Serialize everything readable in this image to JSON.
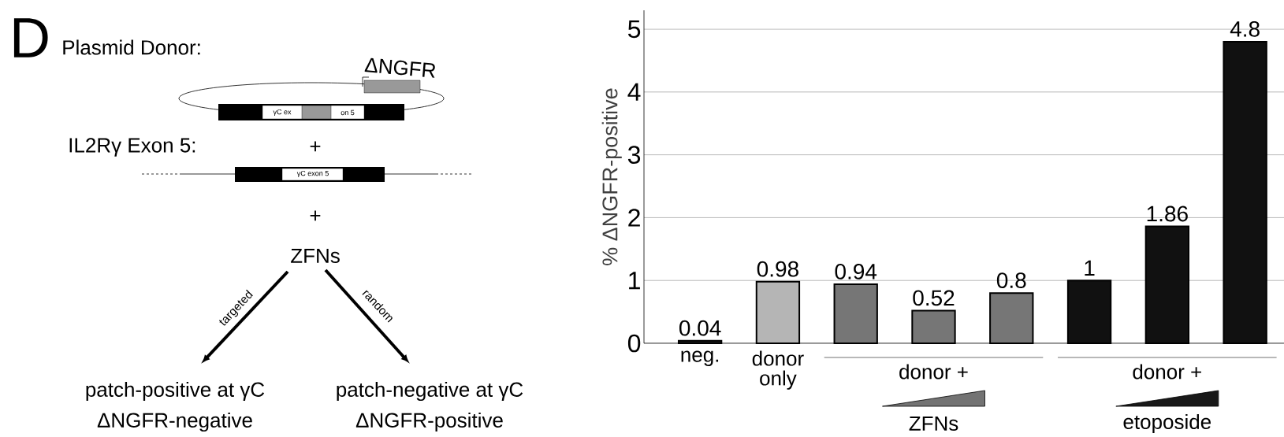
{
  "chart_data": {
    "type": "bar",
    "ylabel": "% ΔNGFR-positive",
    "categories": [
      "neg.",
      "donor only",
      null,
      null,
      null,
      null,
      null,
      null
    ],
    "values": [
      0.04,
      0.98,
      0.94,
      0.52,
      0.8,
      1,
      1.86,
      4.8
    ],
    "colors": [
      "#1a1a1a",
      "#b5b5b5",
      "#767676",
      "#767676",
      "#767676",
      "#111111",
      "#111111",
      "#111111"
    ],
    "ylim": [
      0,
      5.3
    ],
    "yticks": [
      0,
      1,
      2,
      3,
      4,
      5
    ],
    "grid": "y",
    "data_labels": true,
    "annotations": [
      "donor +",
      "ZFNs",
      "donor +",
      "etoposide",
      "D",
      "Plasmid Donor:",
      "ΔNGFR",
      "γC ex",
      "on 5",
      "IL2Rγ Exon 5:",
      "+",
      "γC exon 5",
      "+",
      "ZFNs",
      "targeted",
      "random",
      "patch-positive at γC",
      "ΔNGFR-negative",
      "patch-negative at γC",
      "ΔNGFR-positive"
    ]
  }
}
